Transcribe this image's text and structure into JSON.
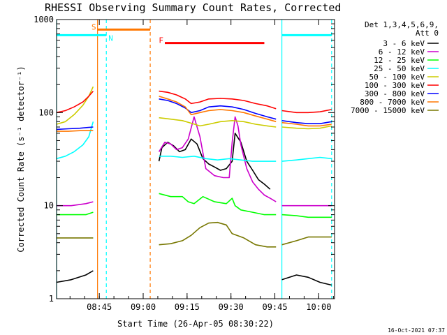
{
  "chart_data": {
    "type": "line",
    "title": "RHESSI Observing Summary Count Rates, Corrected",
    "xlabel": "Start Time (26-Apr-05 08:30:22)",
    "ylabel": "Corrected Count Rate (s⁻¹ detector⁻¹)",
    "x_unit": "minutes since 08:30:22",
    "xlim": [
      0,
      95
    ],
    "ylim": [
      1,
      1000
    ],
    "yscale": "log",
    "x_ticks": [
      {
        "x": 14.6,
        "label": "08:45"
      },
      {
        "x": 29.6,
        "label": "09:00"
      },
      {
        "x": 44.6,
        "label": "09:15"
      },
      {
        "x": 59.6,
        "label": "09:30"
      },
      {
        "x": 74.6,
        "label": "09:45"
      },
      {
        "x": 89.6,
        "label": "10:00"
      }
    ],
    "y_ticks": [
      {
        "y": 1,
        "label": "1"
      },
      {
        "y": 10,
        "label": "10"
      },
      {
        "y": 100,
        "label": "100"
      },
      {
        "y": 1000,
        "label": "1000"
      }
    ],
    "legend_title": [
      "Det 1,3,4,5,6,9,",
      "Att 0"
    ],
    "legend_position": "right",
    "timestamp": "16-Oct-2021 07:37",
    "series": [
      {
        "name": "3 - 6 keV",
        "color": "#000000",
        "segments": [
          [
            [
              0,
              1.5
            ],
            [
              5,
              1.6
            ],
            [
              10,
              1.8
            ],
            [
              12.5,
              2.0
            ]
          ],
          [
            [
              35,
              30
            ],
            [
              36,
              42
            ],
            [
              38,
              48
            ],
            [
              40,
              44
            ],
            [
              42,
              38
            ],
            [
              44,
              40
            ],
            [
              46,
              52
            ],
            [
              48,
              46
            ],
            [
              50,
              32
            ],
            [
              52,
              28
            ],
            [
              54,
              26
            ],
            [
              56,
              24
            ],
            [
              58,
              25
            ],
            [
              60,
              30
            ],
            [
              61,
              60
            ],
            [
              63,
              48
            ],
            [
              65,
              30
            ],
            [
              67,
              24
            ],
            [
              69,
              19
            ],
            [
              71,
              17
            ],
            [
              73,
              15
            ]
          ],
          [
            [
              77,
              1.6
            ],
            [
              82,
              1.8
            ],
            [
              86,
              1.7
            ],
            [
              90,
              1.5
            ],
            [
              94,
              1.4
            ]
          ]
        ]
      },
      {
        "name": "6 - 12 keV",
        "color": "#cc00cc",
        "segments": [
          [
            [
              0,
              10
            ],
            [
              5,
              10
            ],
            [
              10,
              10.5
            ],
            [
              12.5,
              11
            ]
          ],
          [
            [
              35,
              38
            ],
            [
              37,
              48
            ],
            [
              39,
              46
            ],
            [
              41,
              40
            ],
            [
              43,
              42
            ],
            [
              45,
              52
            ],
            [
              47,
              90
            ],
            [
              49,
              55
            ],
            [
              51,
              25
            ],
            [
              54,
              21
            ],
            [
              57,
              20
            ],
            [
              59,
              20
            ],
            [
              60,
              48
            ],
            [
              61,
              90
            ],
            [
              62,
              72
            ],
            [
              63,
              45
            ],
            [
              65,
              25
            ],
            [
              67,
              18
            ],
            [
              69,
              15
            ],
            [
              71,
              13
            ],
            [
              73,
              12
            ],
            [
              75,
              11
            ]
          ],
          [
            [
              77,
              10
            ],
            [
              82,
              10
            ],
            [
              86,
              10
            ],
            [
              90,
              10
            ],
            [
              94,
              10
            ]
          ]
        ]
      },
      {
        "name": "12 - 25 keV",
        "color": "#00ff00",
        "segments": [
          [
            [
              0,
              8
            ],
            [
              5,
              8
            ],
            [
              10,
              8
            ],
            [
              12.5,
              8.5
            ]
          ],
          [
            [
              35,
              13.5
            ],
            [
              39,
              12.5
            ],
            [
              43,
              12.5
            ],
            [
              45,
              11
            ],
            [
              47,
              10.5
            ],
            [
              50,
              12.5
            ],
            [
              54,
              11
            ],
            [
              58,
              10.5
            ],
            [
              60,
              12
            ],
            [
              61,
              10
            ],
            [
              63,
              9
            ],
            [
              67,
              8.5
            ],
            [
              71,
              8
            ],
            [
              75,
              8
            ]
          ],
          [
            [
              77,
              8
            ],
            [
              82,
              7.8
            ],
            [
              86,
              7.5
            ],
            [
              90,
              7.5
            ],
            [
              94,
              7.5
            ]
          ]
        ]
      },
      {
        "name": "25 - 50 keV",
        "color": "#00ffff",
        "segments": [
          [
            [
              0,
              32
            ],
            [
              3,
              34
            ],
            [
              6,
              38
            ],
            [
              9,
              45
            ],
            [
              11,
              55
            ],
            [
              12.5,
              80
            ]
          ],
          [
            [
              35,
              34
            ],
            [
              39,
              34
            ],
            [
              43,
              33
            ],
            [
              47,
              34
            ],
            [
              51,
              32
            ],
            [
              55,
              31
            ],
            [
              59,
              32
            ],
            [
              63,
              31
            ],
            [
              67,
              30
            ],
            [
              71,
              30
            ],
            [
              75,
              30
            ]
          ],
          [
            [
              77,
              30
            ],
            [
              82,
              31
            ],
            [
              86,
              32
            ],
            [
              90,
              33
            ],
            [
              94,
              32
            ]
          ]
        ]
      },
      {
        "name": "50 - 100 keV",
        "color": "#cccc00",
        "segments": [
          [
            [
              0,
              75
            ],
            [
              3,
              80
            ],
            [
              6,
              95
            ],
            [
              9,
              120
            ],
            [
              11,
              150
            ],
            [
              12.5,
              190
            ]
          ],
          [
            [
              35,
              88
            ],
            [
              39,
              85
            ],
            [
              43,
              82
            ],
            [
              46,
              77
            ],
            [
              49,
              72
            ],
            [
              52,
              75
            ],
            [
              56,
              80
            ],
            [
              60,
              82
            ],
            [
              64,
              80
            ],
            [
              68,
              75
            ],
            [
              72,
              72
            ],
            [
              75,
              70
            ]
          ],
          [
            [
              77,
              70
            ],
            [
              82,
              68
            ],
            [
              86,
              67
            ],
            [
              90,
              68
            ],
            [
              94,
              72
            ]
          ]
        ]
      },
      {
        "name": "100 - 300 keV",
        "color": "#ff0000",
        "segments": [
          [
            [
              0,
              100
            ],
            [
              3,
              105
            ],
            [
              6,
              115
            ],
            [
              9,
              130
            ],
            [
              11,
              150
            ],
            [
              12.5,
              170
            ]
          ],
          [
            [
              35,
              170
            ],
            [
              38,
              165
            ],
            [
              41,
              155
            ],
            [
              44,
              140
            ],
            [
              46,
              125
            ],
            [
              49,
              130
            ],
            [
              52,
              140
            ],
            [
              56,
              142
            ],
            [
              60,
              140
            ],
            [
              64,
              135
            ],
            [
              68,
              125
            ],
            [
              72,
              118
            ],
            [
              75,
              110
            ]
          ],
          [
            [
              77,
              105
            ],
            [
              82,
              100
            ],
            [
              86,
              100
            ],
            [
              90,
              102
            ],
            [
              94,
              108
            ]
          ]
        ]
      },
      {
        "name": "300 - 800 keV",
        "color": "#0000ff",
        "segments": [
          [
            [
              0,
              66
            ],
            [
              4,
              67
            ],
            [
              8,
              68
            ],
            [
              12.5,
              70
            ]
          ],
          [
            [
              35,
              140
            ],
            [
              38,
              135
            ],
            [
              41,
              125
            ],
            [
              44,
              112
            ],
            [
              46,
              100
            ],
            [
              49,
              105
            ],
            [
              52,
              115
            ],
            [
              56,
              118
            ],
            [
              60,
              115
            ],
            [
              64,
              108
            ],
            [
              68,
              98
            ],
            [
              72,
              90
            ],
            [
              75,
              85
            ]
          ],
          [
            [
              77,
              82
            ],
            [
              82,
              78
            ],
            [
              86,
              76
            ],
            [
              90,
              76
            ],
            [
              94,
              80
            ]
          ]
        ]
      },
      {
        "name": "800 - 7000 keV",
        "color": "#ff7700",
        "segments": [
          [
            [
              0,
              63
            ],
            [
              4,
              63
            ],
            [
              8,
              64
            ],
            [
              12.5,
              64
            ]
          ],
          [
            [
              35,
              150
            ],
            [
              38,
              140
            ],
            [
              41,
              130
            ],
            [
              44,
              115
            ],
            [
              46,
              95
            ],
            [
              49,
              100
            ],
            [
              52,
              105
            ],
            [
              56,
              108
            ],
            [
              60,
              105
            ],
            [
              64,
              100
            ],
            [
              68,
              92
            ],
            [
              72,
              85
            ],
            [
              75,
              80
            ]
          ],
          [
            [
              77,
              78
            ],
            [
              82,
              75
            ],
            [
              86,
              72
            ],
            [
              90,
              72
            ],
            [
              94,
              75
            ]
          ]
        ]
      },
      {
        "name": "7000 - 15000 keV",
        "color": "#777700",
        "segments": [
          [
            [
              0,
              4.5
            ],
            [
              4,
              4.5
            ],
            [
              8,
              4.5
            ],
            [
              12.5,
              4.5
            ]
          ],
          [
            [
              35,
              3.8
            ],
            [
              39,
              3.9
            ],
            [
              43,
              4.2
            ],
            [
              46,
              4.8
            ],
            [
              49,
              5.8
            ],
            [
              52,
              6.5
            ],
            [
              55,
              6.6
            ],
            [
              58,
              6.2
            ],
            [
              60,
              5.0
            ],
            [
              64,
              4.5
            ],
            [
              68,
              3.8
            ],
            [
              72,
              3.6
            ],
            [
              75,
              3.6
            ]
          ],
          [
            [
              77,
              3.8
            ],
            [
              82,
              4.2
            ],
            [
              86,
              4.6
            ],
            [
              90,
              4.6
            ],
            [
              94,
              4.6
            ]
          ]
        ]
      }
    ],
    "flag_bars": [
      {
        "label": "S",
        "color": "#ff7700",
        "y": 780,
        "x0": 14,
        "x1": 32
      },
      {
        "label": "N",
        "color": "#00ffff",
        "y": 680,
        "x0": 0,
        "x1": 17
      },
      {
        "label": "F",
        "color": "#ff0000",
        "y": 560,
        "x0": 37,
        "x1": 71
      },
      {
        "label": "",
        "color": "#00ffff",
        "y": 680,
        "x0": 77,
        "x1": 94
      }
    ],
    "vertical_lines": [
      {
        "x": 0,
        "color": "#00ffff",
        "style": "solid"
      },
      {
        "x": 14,
        "color": "#ff7700",
        "style": "solid"
      },
      {
        "x": 17,
        "color": "#00ffff",
        "style": "dashed"
      },
      {
        "x": 32,
        "color": "#ff7700",
        "style": "dashed"
      },
      {
        "x": 77,
        "color": "#00ffff",
        "style": "solid"
      },
      {
        "x": 94,
        "color": "#00ffff",
        "style": "dashed"
      }
    ]
  }
}
